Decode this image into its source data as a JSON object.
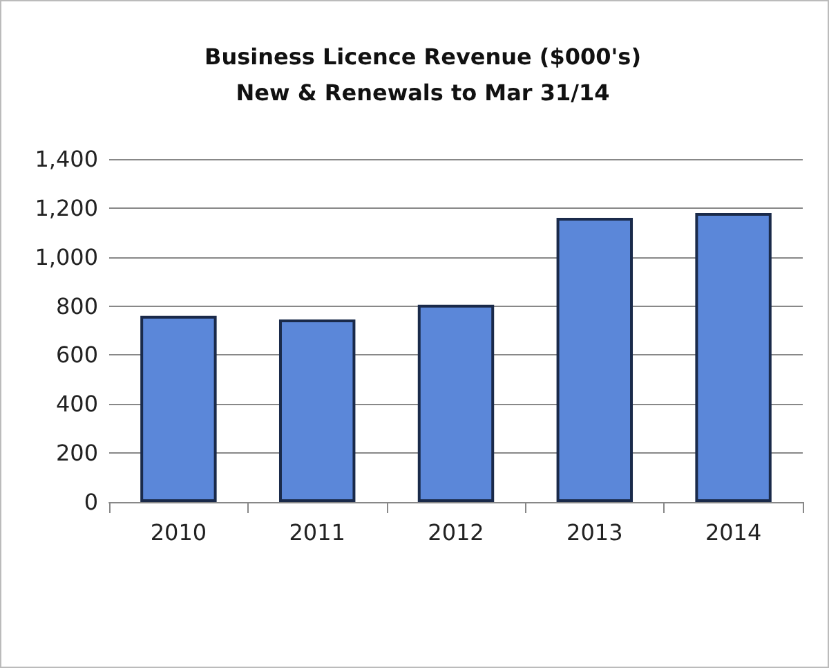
{
  "chart_data": {
    "type": "bar",
    "title": "Business Licence Revenue ($000's)\nNew & Renewals to Mar 31/14",
    "categories": [
      "2010",
      "2011",
      "2012",
      "2013",
      "2014"
    ],
    "values": [
      760,
      745,
      805,
      1160,
      1180
    ],
    "color": "#5b87d9",
    "ylim": [
      0,
      1400
    ],
    "yticks": [
      0,
      200,
      400,
      600,
      800,
      {
        "value": 1000,
        "label": "1,000"
      },
      {
        "value": 1200,
        "label": "1,200"
      },
      {
        "value": 1400,
        "label": "1,400"
      }
    ],
    "grid": "y"
  }
}
